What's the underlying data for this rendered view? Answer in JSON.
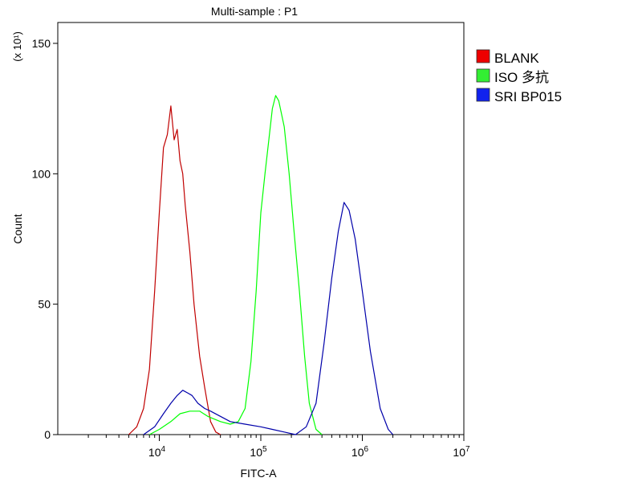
{
  "chart_data": {
    "type": "line",
    "title": "Multi-sample : P1",
    "xlabel": "FITC-A",
    "ylabel": "Count",
    "y_multiplier": "(x 10¹)",
    "x_scale": "log",
    "xlim": [
      1000,
      10000000
    ],
    "ylim": [
      0,
      158
    ],
    "x_ticks": [
      {
        "value": 10000,
        "base": "10",
        "exp": "4"
      },
      {
        "value": 100000,
        "base": "10",
        "exp": "5"
      },
      {
        "value": 1000000,
        "base": "10",
        "exp": "6"
      },
      {
        "value": 10000000,
        "base": "10",
        "exp": "7"
      }
    ],
    "y_ticks": [
      {
        "value": 0,
        "label": "0"
      },
      {
        "value": 50,
        "label": "50"
      },
      {
        "value": 100,
        "label": "100"
      },
      {
        "value": 150,
        "label": "150"
      }
    ],
    "grid": false,
    "legend_position": "right",
    "series": [
      {
        "name": "BLANK",
        "color": "#c00000",
        "x": [
          5000,
          6000,
          7000,
          8000,
          9000,
          10000,
          11000,
          12000,
          13000,
          14000,
          15000,
          16000,
          17000,
          18000,
          20000,
          22000,
          25000,
          28000,
          32000,
          36000,
          40000
        ],
        "y": [
          0,
          3,
          10,
          25,
          55,
          85,
          110,
          115,
          126,
          113,
          117,
          105,
          100,
          88,
          70,
          50,
          30,
          18,
          5,
          1,
          0
        ]
      },
      {
        "name": "ISO 多抗",
        "color": "#00ff00",
        "x": [
          8000,
          10000,
          13000,
          16000,
          20000,
          25000,
          30000,
          40000,
          50000,
          60000,
          70000,
          80000,
          90000,
          100000,
          110000,
          120000,
          130000,
          140000,
          150000,
          170000,
          190000,
          210000,
          240000,
          270000,
          300000,
          350000,
          400000
        ],
        "y": [
          0,
          2,
          5,
          8,
          9,
          9,
          7,
          5,
          4,
          5,
          10,
          28,
          55,
          85,
          100,
          113,
          125,
          130,
          128,
          118,
          100,
          80,
          55,
          30,
          12,
          2,
          0
        ]
      },
      {
        "name": "SRI BP015",
        "color": "#0000aa",
        "x": [
          7000,
          9000,
          11000,
          13000,
          15000,
          17000,
          19000,
          21000,
          24000,
          28000,
          32000,
          40000,
          50000,
          70000,
          100000,
          130000,
          170000,
          220000,
          280000,
          350000,
          420000,
          500000,
          580000,
          660000,
          740000,
          850000,
          1000000,
          1200000,
          1500000,
          1800000,
          2000000
        ],
        "y": [
          0,
          3,
          8,
          12,
          15,
          17,
          16,
          15,
          12,
          10,
          9,
          7,
          5,
          4,
          3,
          2,
          1,
          0,
          3,
          12,
          35,
          60,
          78,
          89,
          86,
          75,
          55,
          32,
          10,
          2,
          0
        ]
      }
    ]
  }
}
